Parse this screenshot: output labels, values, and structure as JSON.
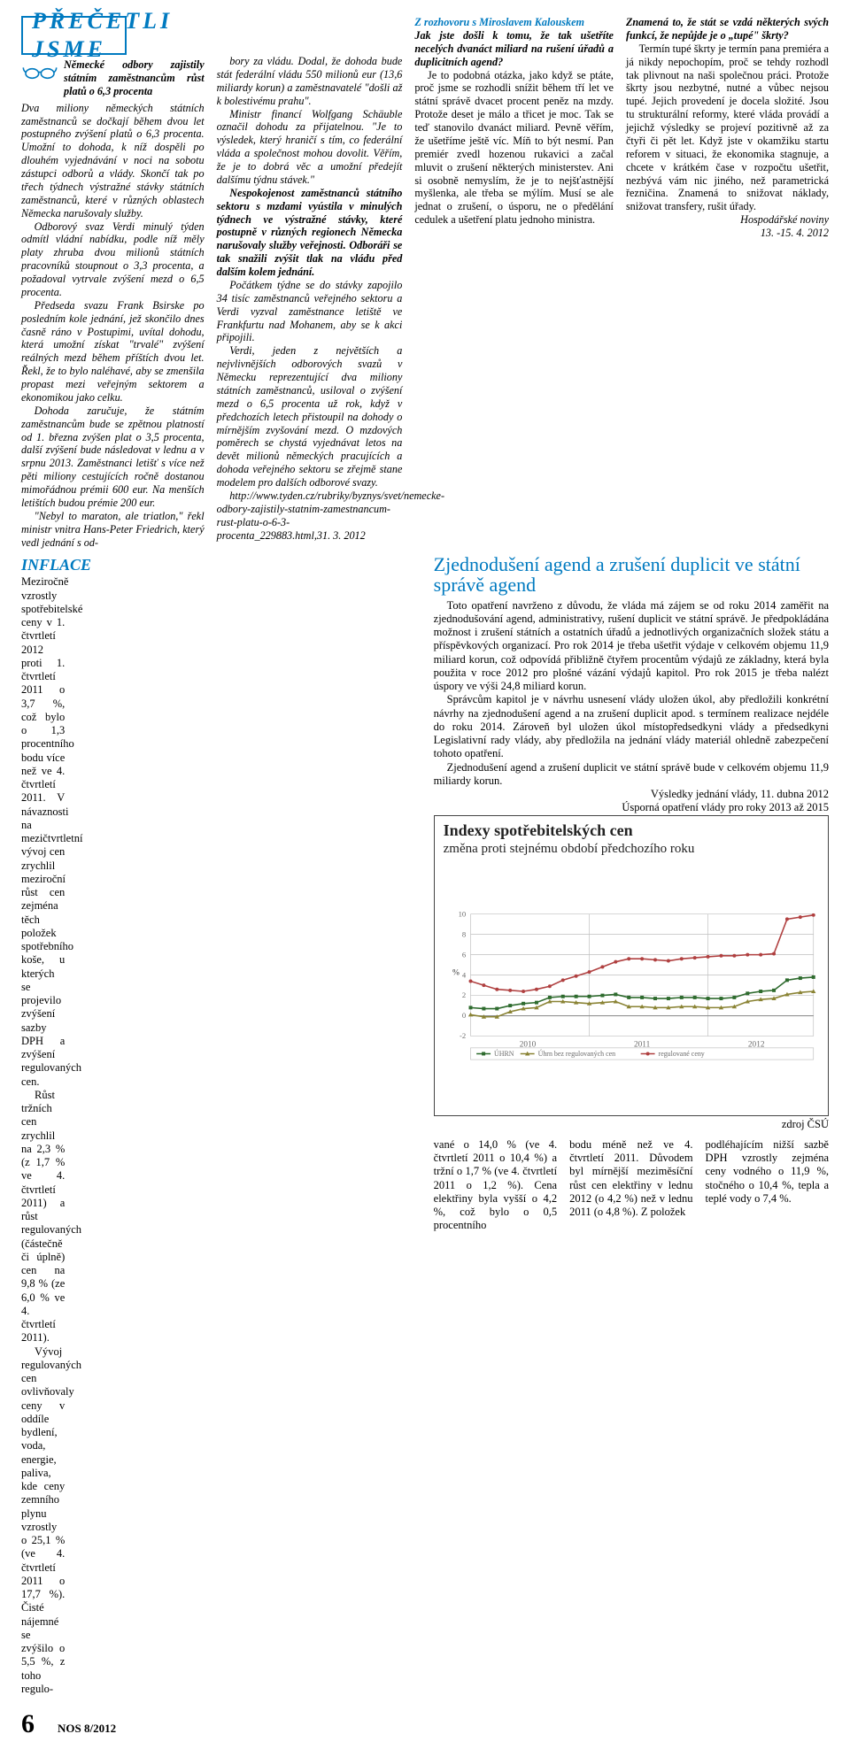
{
  "banner": "PŘEČETLI JSME",
  "lead": "Německé odbory zajistily státním zaměstnancům růst platů o 6,3 procenta",
  "col1": [
    "Dva miliony německých státních zaměstnanců se dočkají během dvou let postupného zvýšení platů o 6,3 procenta. Umožní to dohoda, k níž dospěli po dlouhém vyjednávání v noci na sobotu zástupci odborů a vlády. Skončí tak po třech týdnech výstražné stávky státních zaměstnanců, které v různých oblastech Německa narušovaly služby.",
    "Odborový svaz Verdi minulý týden odmítl vládní nabídku, podle níž měly platy zhruba dvou milionů státních pracovníků stoupnout o 3,3 procenta, a požadoval vytrvale zvýšení mezd o 6,5 procenta.",
    "Předseda svazu Frank Bsirske po posledním kole jednání, jež skončilo dnes časně ráno v Postupimi, uvítal dohodu, která umožní získat \"trvalé\" zvýšení reálných mezd během příštích dvou let. Řekl, že to bylo naléhavé, aby se zmenšila propast mezi veřejným sektorem a ekonomikou jako celku.",
    "Dohoda zaručuje, že státním zaměstnancům bude se zpětnou platností od 1. března zvýšen plat o 3,5 procenta, další zvýšení bude následovat v lednu a v srpnu 2013. Zaměstnanci letišť s více než pěti miliony cestujících ročně dostanou mimořádnou prémii 600 eur. Na menších letištích budou prémie 200 eur.",
    "\"Nebyl to maraton, ale triatlon,\" řekl ministr vnitra Hans-Peter Friedrich, který vedl jednání s od-"
  ],
  "col2": [
    "bory za vládu. Dodal, že dohoda bude stát federální vládu 550 milionů eur (13,6 miliardy korun) a zaměstnavatelé \"došli až k bolestivému prahu\".",
    "Ministr financí Wolfgang Schäuble označil dohodu za přijatelnou. \"Je to výsledek, který hraničí s tím, co federální vláda a společnost mohou dovolit. Věřím, že je to dobrá věc a umožní předejít dalšímu týdnu stávek.\"",
    "Nespokojenost zaměstnanců státního sektoru s mzdami vyústila v minulých týdnech ve výstražné stávky, které postupně v různých regionech Německa narušovaly služby veřejnosti. Odboráři se tak snažili zvýšit tlak na vládu před dalším kolem jednání.",
    "Počátkem týdne se do stávky zapojilo 34 tisíc zaměstnanců veřejného sektoru a Verdi vyzval zaměstnance letiště ve Frankfurtu nad Mohanem, aby se k akci připojili.",
    "Verdi, jeden z největších a nejvlivnějších odborových svazů v Německu reprezentující dva miliony státních zaměstnanců, usiloval o zvýšení mezd o 6,5 procenta už rok, když v předchozích letech přistoupil na dohody o mírnějším zvyšování mezd. O mzdových poměrech se chystá vyjednávat letos na devět milionů německých pracujících a dohoda veřejného sektoru se zřejmě stane modelem pro dalších odborové svazy.",
    "http://www.tyden.cz/rubriky/byznys/svet/nemecke-odbory-zajistily-statnim-zamestnancum-rust-platu-o-6-3-procenta_229883.html,31. 3. 2012"
  ],
  "col3_head": "Z rozhovoru s Miroslavem Kalouskem",
  "col3_q1": "Jak jste došli k tomu, že tak ušetříte necelých dvanáct miliard na rušení úřadů a duplicitních agend?",
  "col3": [
    "Je to podobná otázka, jako když se ptáte, proč jsme se rozhodli snížit během tří let ve státní správě dvacet procent peněz na mzdy. Protože deset je málo a třicet je moc. Tak se teď stanovilo dvanáct miliard. Pevně věřím, že ušetříme ještě víc. Míň to být nesmí. Pan premiér zvedl hozenou rukavici a začal mluvit o zrušení některých ministerstev. Ani si osobně nemyslím, že je to nejšťastnější myšlenka, ale třeba se mýlím. Musí se ale jednat o zrušení, o úsporu, ne o předělání cedulek a ušetření platu jednoho ministra."
  ],
  "col4_q": "Znamená to, že stát se vzdá některých svých funkcí, že nepůjde je o „tupé\" škrty?",
  "col4": [
    "Termín tupé škrty je termín pana premiéra a já nikdy nepochopím, proč se tehdy rozhodl tak plivnout na naši společnou práci. Protože škrty jsou nezbytné, nutné a vůbec nejsou tupé. Jejich provedení je docela složité. Jsou tu strukturální reformy, které vláda provádí a jejichž výsledky se projeví pozitivně až za čtyři či pět let. Když jste v okamžiku startu reforem v situaci, že ekonomika stagnuje, a chcete v krátkém čase v rozpočtu ušetřit, nezbývá vám nic jiného, než parametrická řezničina. Znamená to snižovat náklady, snižovat transfery, rušit úřady."
  ],
  "col4_sig1": "Hospodářské noviny",
  "col4_sig2": "13. -15. 4. 2012",
  "blue_head": "Zjednodušení agend a zrušení duplicit ve státní správě agend",
  "right_body": [
    "Toto opatření navrženo z důvodu, že vláda má zájem se od roku 2014 zaměřit na zjednodušování agend, administrativy, rušení duplicit ve státní správě. Je předpokládána možnost i zrušení státních a ostatních úřadů a jednotlivých organizačních složek státu a příspěvkových organizací. Pro rok 2014 je třeba ušetřit výdaje v celkovém objemu 11,9 miliard korun, což odpovídá přibližně čtyřem procentům výdajů ze základny, která byla použita v roce 2012 pro plošné vázání výdajů kapitol. Pro rok 2015 je třeba nalézt úspory ve výši 24,8 miliard korun.",
    "Správcům kapitol je v návrhu usnesení vlády uložen úkol, aby předložili konkrétní návrhy na zjednodušení agend a na zrušení duplicit apod. s termínem realizace nejdéle do roku 2014. Zároveň byl uložen úkol místopředsedkyni vlády a předsedkyni Legislativní rady vlády, aby předložila na jednání vlády materiál ohledně zabezpečení tohoto opatření.",
    "Zjednodušení agend a zrušení duplicit ve státní správě bude v celkovém objemu 11,9 miliardy korun."
  ],
  "right_sig1": "Výsledky jednání vlády, 11. dubna 2012",
  "right_sig2": "Úsporná opatření vlády pro roky 2013 až 2015",
  "inflace_head": "INFLACE",
  "inflace": [
    "Meziročně vzrostly spotřebitelské ceny v 1. čtvrtletí 2012 proti 1. čtvrtletí 2011 o 3,7 %, což bylo o 1,3 procentního bodu více než ve 4. čtvrtletí 2011. V návaznosti na mezičtvrtletní vývoj cen zrychlil meziroční růst cen zejména těch položek spotřebního koše, u kterých se projevilo zvýšení sazby DPH a zvýšení regulovaných cen.",
    "Růst tržních cen zrychlil na 2,3 % (z 1,7 % ve 4. čtvrtletí 2011) a růst regulovaných (částečně či úplně) cen na 9,8 % (ze 6,0 % ve 4. čtvrtletí 2011).",
    "Vývoj regulovaných cen ovlivňovaly ceny v oddíle bydlení, voda, energie, paliva, kde ceny zemního plynu vzrostly o 25,1 % (ve 4. čtvrtletí 2011 o 17,7 %). Čisté nájemné se zvýšilo o 5,5 %, z toho regulo-"
  ],
  "chart": {
    "title1": "Indexy spotřebitelských cen",
    "title2": "změna proti stejnému období předchozího roku",
    "ylabel": "%",
    "yticks": [
      -2,
      0,
      2,
      4,
      6,
      8,
      10
    ],
    "xlabels": [
      "2010",
      "2011",
      "2012"
    ],
    "legend": [
      "ÚHRN",
      "Úhrn bez regulovaných cen",
      "regulované ceny"
    ],
    "colors": {
      "uhrn": "#2e6b2e",
      "bezreg": "#8a8334",
      "reg": "#b04040",
      "grid": "#bfbfbf",
      "text": "#6b6b6b"
    },
    "series": {
      "reg": [
        3.4,
        3.0,
        2.6,
        2.5,
        2.4,
        2.6,
        2.9,
        3.5,
        3.9,
        4.3,
        4.8,
        5.3,
        5.6,
        5.6,
        5.5,
        5.4,
        5.6,
        5.7,
        5.8,
        5.9,
        5.9,
        6.0,
        6.0,
        6.1,
        9.5,
        9.7,
        9.9
      ],
      "uhrn": [
        0.8,
        0.7,
        0.7,
        1.0,
        1.2,
        1.3,
        1.8,
        1.9,
        1.9,
        1.9,
        2.0,
        2.1,
        1.8,
        1.8,
        1.7,
        1.7,
        1.8,
        1.8,
        1.7,
        1.7,
        1.8,
        2.2,
        2.4,
        2.5,
        3.5,
        3.7,
        3.8
      ],
      "bezreg": [
        0.1,
        -0.1,
        -0.1,
        0.4,
        0.7,
        0.8,
        1.4,
        1.4,
        1.3,
        1.2,
        1.3,
        1.4,
        0.9,
        0.9,
        0.8,
        0.8,
        0.9,
        0.9,
        0.8,
        0.8,
        0.9,
        1.4,
        1.6,
        1.7,
        2.1,
        2.3,
        2.4
      ]
    }
  },
  "footer": [
    "vané o 14,0 % (ve 4. čtvrtletí 2011 o 10,4 %) a tržní o 1,7 % (ve 4. čtvrtletí 2011 o 1,2 %). Cena elektřiny byla vyšší o 4,2 %, což bylo o 0,5 procentního",
    "bodu méně než ve 4. čtvrtletí 2011. Důvodem byl mírnější meziměsíční růst cen elektřiny v lednu 2012 (o 4,2 %) než v lednu 2011 (o 4,8 %). Z položek",
    "podléhajícím nižší sazbě DPH vzrostly zejména ceny vodného o 11,9 %, stočného o 10,4 %, tepla a teplé vody o 7,4 %."
  ],
  "src": "zdroj ČSÚ",
  "page": "6",
  "nos": "NOS 8/2012"
}
